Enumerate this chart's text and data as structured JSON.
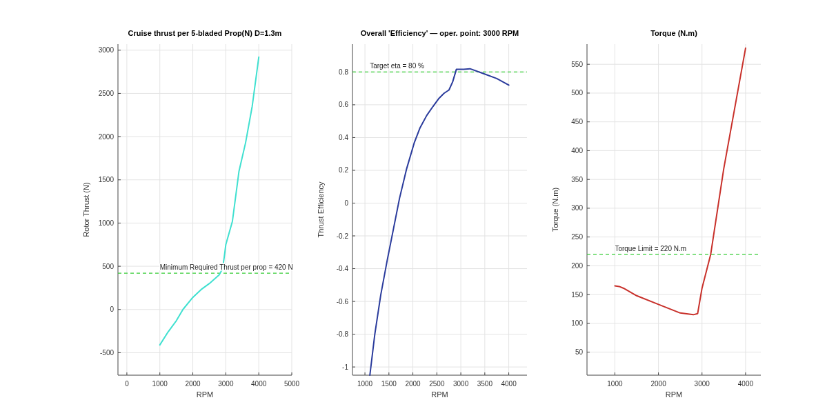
{
  "chart_data": [
    {
      "type": "line",
      "title": "Cruise thrust per 5-bladed Prop(N) D=1.3m",
      "xlabel": "RPM",
      "ylabel": "Rotor Thrust (N)",
      "grid": true,
      "xlim": [
        -270,
        5000
      ],
      "xticks": [
        0,
        1000,
        2000,
        3000,
        4000,
        5000
      ],
      "ylim": [
        -760,
        3070
      ],
      "yticks": [
        -500,
        0,
        500,
        1000,
        1500,
        2000,
        2500,
        3000
      ],
      "series": [
        {
          "color": "#40e0d0",
          "x": [
            1000,
            1250,
            1500,
            1700,
            2000,
            2250,
            2500,
            2800,
            2900,
            2950,
            3000,
            3200,
            3400,
            3600,
            3800,
            4000
          ],
          "values": [
            -410,
            -260,
            -130,
            0,
            140,
            230,
            300,
            400,
            470,
            600,
            750,
            1020,
            1600,
            1930,
            2350,
            2920
          ]
        }
      ],
      "ref_lines": [
        {
          "axis": "y",
          "value": 420,
          "label": "Minimum Required Thrust per prop = 420 N",
          "color": "#33cc33",
          "line_style": "dashed"
        }
      ]
    },
    {
      "type": "line",
      "title": "Overall 'Efficiency' — oper. point: 3000 RPM",
      "xlabel": "RPM",
      "ylabel": "Thrust Efficiency",
      "grid": true,
      "xlim": [
        740,
        4380
      ],
      "xticks": [
        1000,
        1500,
        2000,
        2500,
        3000,
        3500,
        4000
      ],
      "ylim": [
        -1.05,
        0.97
      ],
      "yticks": [
        -1,
        -0.8,
        -0.6,
        -0.4,
        -0.2,
        0,
        0.2,
        0.4,
        0.6,
        0.8
      ],
      "series": [
        {
          "color": "#2a3b9c",
          "x": [
            1103,
            1206,
            1330,
            1464,
            1600,
            1722,
            1870,
            2031,
            2150,
            2289,
            2420,
            2546,
            2650,
            2753,
            2830,
            2907,
            3062,
            3191,
            3474,
            3750,
            4000
          ],
          "values": [
            -1.05,
            -0.8,
            -0.56,
            -0.35,
            -0.15,
            0.03,
            0.21,
            0.37,
            0.46,
            0.535,
            0.59,
            0.64,
            0.67,
            0.69,
            0.74,
            0.816,
            0.816,
            0.82,
            0.79,
            0.76,
            0.72
          ]
        }
      ],
      "ref_lines": [
        {
          "axis": "y",
          "value": 0.8,
          "label": "Target eta = 80 %",
          "color": "#33cc33",
          "line_style": "dashed"
        }
      ]
    },
    {
      "type": "line",
      "title": "Torque (N.m)",
      "xlabel": "RPM",
      "ylabel": "Torque (N.m)",
      "grid": true,
      "xlim": [
        360,
        4350
      ],
      "xticks": [
        1000,
        2000,
        3000,
        4000
      ],
      "ylim": [
        10,
        585
      ],
      "yticks": [
        50,
        100,
        150,
        200,
        250,
        300,
        350,
        400,
        450,
        500,
        550
      ],
      "series": [
        {
          "color": "#c8302a",
          "x": [
            1000,
            1100,
            1200,
            1500,
            2000,
            2500,
            2800,
            2900,
            3000,
            3200,
            3500,
            4000
          ],
          "values": [
            165,
            164,
            161,
            148,
            133,
            118,
            115,
            117,
            161,
            220,
            369,
            578
          ]
        }
      ],
      "ref_lines": [
        {
          "axis": "y",
          "value": 220,
          "label": "Torque Limit = 220 N.m",
          "color": "#33cc33",
          "line_style": "dashed"
        }
      ]
    }
  ]
}
